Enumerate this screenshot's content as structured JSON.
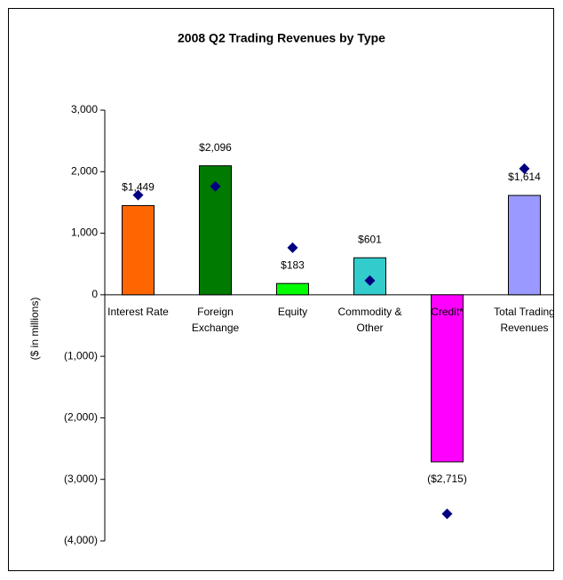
{
  "chart_data": {
    "type": "bar",
    "title": "2008 Q2 Trading Revenues by Type",
    "y_axis_label": "($ in millions)",
    "categories": [
      [
        "Interest Rate"
      ],
      [
        "Foreign",
        "Exchange"
      ],
      [
        "Equity"
      ],
      [
        "Commodity &",
        "Other"
      ],
      [
        "Credit*"
      ],
      [
        "Total Trading",
        "Revenues"
      ]
    ],
    "values": [
      1449,
      2096,
      183,
      601,
      -2715,
      1614
    ],
    "value_labels": [
      "$1,449",
      "$2,096",
      "$183",
      "$601",
      "($2,715)",
      "$1,614"
    ],
    "colors": [
      "#ff6600",
      "#007a00",
      "#00ff00",
      "#33cccc",
      "#ff00ff",
      "#9999ff"
    ],
    "markers": {
      "shape": "diamond",
      "color": "#000080",
      "values": [
        1620,
        1760,
        765,
        230,
        -3560,
        2050
      ]
    },
    "negative_color": "#ff0000",
    "ylim": [
      -4000,
      3000
    ],
    "yticks": [
      {
        "value": -4000,
        "label": "(4,000)"
      },
      {
        "value": -3000,
        "label": "(3,000)"
      },
      {
        "value": -2000,
        "label": "(2,000)"
      },
      {
        "value": -1000,
        "label": "(1,000)"
      },
      0,
      {
        "value": 1000,
        "label": "1,000"
      },
      {
        "value": 2000,
        "label": "2,000"
      },
      {
        "value": 3000,
        "label": "3,000"
      }
    ],
    "grid": false
  }
}
